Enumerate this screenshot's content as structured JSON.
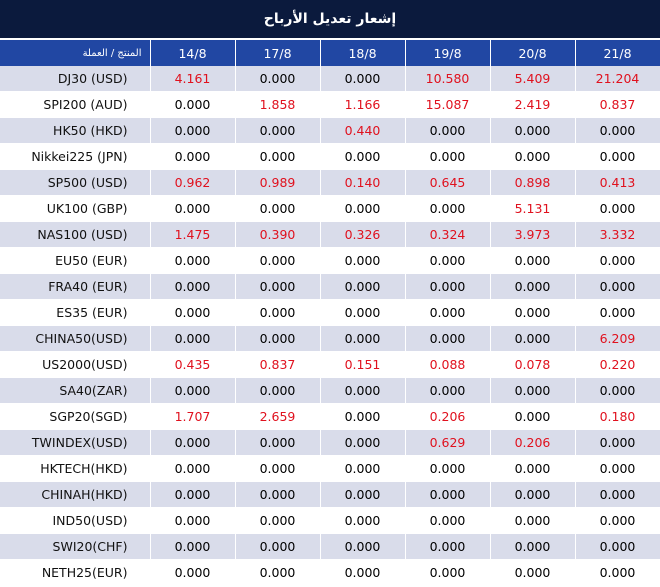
{
  "title": "إشعار تعديل الأرباح",
  "header": {
    "product_label": "المنتج / العملة",
    "dates": [
      "14/8",
      "17/8",
      "18/8",
      "19/8",
      "20/8",
      "21/8"
    ]
  },
  "colors": {
    "title_bg": "#0b1a3d",
    "header_bg": "#2147a3",
    "row_alt": "#d9dcea",
    "positive": "#e0111e"
  },
  "rows": [
    {
      "name": "DJ30 (USD)",
      "values": [
        "4.161",
        "0.000",
        "0.000",
        "10.580",
        "5.409",
        "21.204"
      ]
    },
    {
      "name": "SPI200 (AUD)",
      "values": [
        "0.000",
        "1.858",
        "1.166",
        "15.087",
        "2.419",
        "0.837"
      ]
    },
    {
      "name": "HK50 (HKD)",
      "values": [
        "0.000",
        "0.000",
        "0.440",
        "0.000",
        "0.000",
        "0.000"
      ]
    },
    {
      "name": "Nikkei225 (JPN)",
      "values": [
        "0.000",
        "0.000",
        "0.000",
        "0.000",
        "0.000",
        "0.000"
      ]
    },
    {
      "name": "SP500 (USD)",
      "values": [
        "0.962",
        "0.989",
        "0.140",
        "0.645",
        "0.898",
        "0.413"
      ]
    },
    {
      "name": "UK100 (GBP)",
      "values": [
        "0.000",
        "0.000",
        "0.000",
        "0.000",
        "5.131",
        "0.000"
      ]
    },
    {
      "name": "NAS100 (USD)",
      "values": [
        "1.475",
        "0.390",
        "0.326",
        "0.324",
        "3.973",
        "3.332"
      ]
    },
    {
      "name": "EU50 (EUR)",
      "values": [
        "0.000",
        "0.000",
        "0.000",
        "0.000",
        "0.000",
        "0.000"
      ]
    },
    {
      "name": "FRA40 (EUR)",
      "values": [
        "0.000",
        "0.000",
        "0.000",
        "0.000",
        "0.000",
        "0.000"
      ]
    },
    {
      "name": "ES35 (EUR)",
      "values": [
        "0.000",
        "0.000",
        "0.000",
        "0.000",
        "0.000",
        "0.000"
      ]
    },
    {
      "name": "CHINA50(USD)",
      "values": [
        "0.000",
        "0.000",
        "0.000",
        "0.000",
        "0.000",
        "6.209"
      ]
    },
    {
      "name": "US2000(USD)",
      "values": [
        "0.435",
        "0.837",
        "0.151",
        "0.088",
        "0.078",
        "0.220"
      ]
    },
    {
      "name": "SA40(ZAR)",
      "values": [
        "0.000",
        "0.000",
        "0.000",
        "0.000",
        "0.000",
        "0.000"
      ]
    },
    {
      "name": "SGP20(SGD)",
      "values": [
        "1.707",
        "2.659",
        "0.000",
        "0.206",
        "0.000",
        "0.180"
      ]
    },
    {
      "name": "TWINDEX(USD)",
      "values": [
        "0.000",
        "0.000",
        "0.000",
        "0.629",
        "0.206",
        "0.000"
      ]
    },
    {
      "name": "HKTECH(HKD)",
      "values": [
        "0.000",
        "0.000",
        "0.000",
        "0.000",
        "0.000",
        "0.000"
      ]
    },
    {
      "name": "CHINAH(HKD)",
      "values": [
        "0.000",
        "0.000",
        "0.000",
        "0.000",
        "0.000",
        "0.000"
      ]
    },
    {
      "name": "IND50(USD)",
      "values": [
        "0.000",
        "0.000",
        "0.000",
        "0.000",
        "0.000",
        "0.000"
      ]
    },
    {
      "name": "SWI20(CHF)",
      "values": [
        "0.000",
        "0.000",
        "0.000",
        "0.000",
        "0.000",
        "0.000"
      ]
    },
    {
      "name": "NETH25(EUR)",
      "values": [
        "0.000",
        "0.000",
        "0.000",
        "0.000",
        "0.000",
        "0.000"
      ]
    }
  ]
}
